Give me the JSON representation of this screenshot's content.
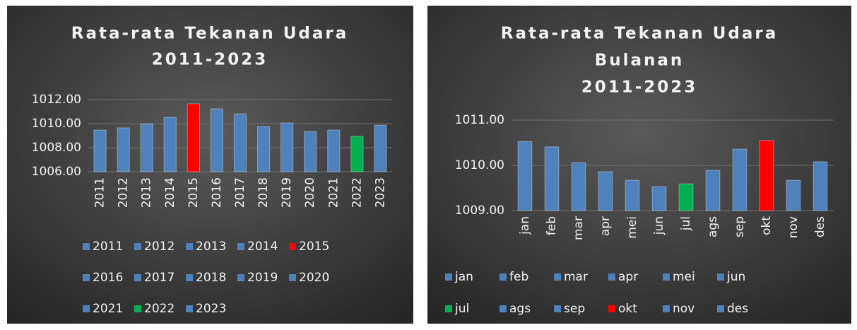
{
  "chart_data": [
    {
      "type": "bar",
      "title": [
        "Rata-rata Tekanan Udara",
        "2011-2023"
      ],
      "categories": [
        "2011",
        "2012",
        "2013",
        "2014",
        "2015",
        "2016",
        "2017",
        "2018",
        "2019",
        "2020",
        "2021",
        "2022",
        "2023"
      ],
      "values": [
        1009.47,
        1009.65,
        1010.0,
        1010.53,
        1011.65,
        1011.24,
        1010.82,
        1009.76,
        1010.06,
        1009.35,
        1009.47,
        1008.94,
        1009.88
      ],
      "colors": [
        "#4f81bd",
        "#4f81bd",
        "#4f81bd",
        "#4f81bd",
        "#ff0000",
        "#4f81bd",
        "#4f81bd",
        "#4f81bd",
        "#4f81bd",
        "#4f81bd",
        "#4f81bd",
        "#00b050",
        "#4f81bd"
      ],
      "ylim": [
        1006,
        1012
      ],
      "yticks": [
        {
          "value": 1006,
          "label": "1006.00"
        },
        {
          "value": 1008,
          "label": "1008.00"
        },
        {
          "value": 1010,
          "label": "1010.00"
        },
        {
          "value": 1012,
          "label": "1012.00"
        }
      ],
      "grid": true,
      "legend": "bottom"
    },
    {
      "type": "bar",
      "title": [
        "Rata-rata Tekanan Udara",
        "Bulanan",
        "2011-2023"
      ],
      "categories": [
        "jan",
        "feb",
        "mar",
        "apr",
        "mei",
        "jun",
        "jul",
        "ags",
        "sep",
        "okt",
        "nov",
        "des"
      ],
      "values": [
        1010.53,
        1010.41,
        1010.06,
        1009.86,
        1009.67,
        1009.53,
        1009.59,
        1009.89,
        1010.36,
        1010.55,
        1009.67,
        1010.08
      ],
      "colors": [
        "#4f81bd",
        "#4f81bd",
        "#4f81bd",
        "#4f81bd",
        "#4f81bd",
        "#4f81bd",
        "#00b050",
        "#4f81bd",
        "#4f81bd",
        "#ff0000",
        "#4f81bd",
        "#4f81bd"
      ],
      "ylim": [
        1009,
        1011
      ],
      "yticks": [
        {
          "value": 1009,
          "label": "1009.00"
        },
        {
          "value": 1010,
          "label": "1010.00"
        },
        {
          "value": 1011,
          "label": "1011.00"
        }
      ],
      "grid": true,
      "legend": "bottom"
    }
  ]
}
